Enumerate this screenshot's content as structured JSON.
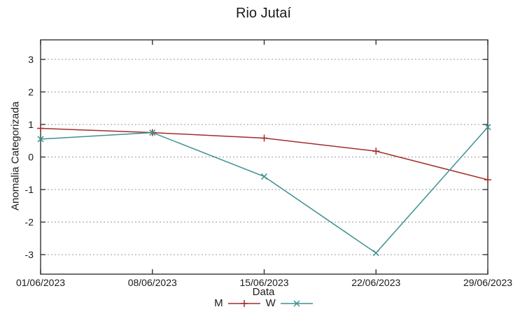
{
  "chart_data": {
    "type": "line",
    "title": "Rio Jutaí",
    "xlabel": "Data",
    "ylabel": "Anomalia Categorizada",
    "categories": [
      "01/06/2023",
      "08/06/2023",
      "15/06/2023",
      "22/06/2023",
      "29/06/2023"
    ],
    "series": [
      {
        "name": "M",
        "marker": "plus",
        "color": "#a32c2a",
        "values": [
          0.88,
          0.75,
          0.58,
          0.18,
          -0.7
        ]
      },
      {
        "name": "W",
        "marker": "cross",
        "color": "#3f9191",
        "values": [
          0.55,
          0.75,
          -0.6,
          -2.95,
          0.92
        ]
      }
    ],
    "ylim": [
      -3.6,
      3.6
    ],
    "yticks": [
      -3,
      -2,
      -1,
      0,
      1,
      2,
      3
    ],
    "grid": "horizontal-dotted",
    "legend_position": "below-x-axis",
    "colors": {
      "grid": "#9a9a9a",
      "border": "#333333",
      "text": "#1a1a1a",
      "background": "#ffffff"
    }
  }
}
